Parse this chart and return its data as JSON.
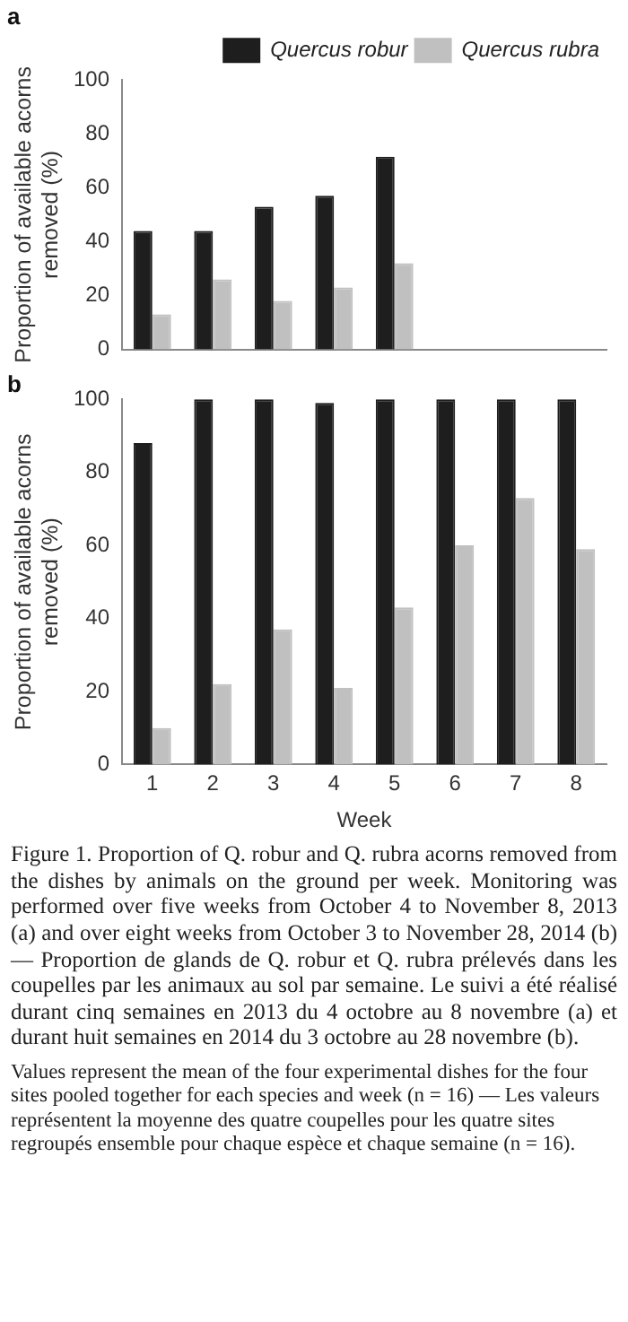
{
  "chart_data": [
    {
      "type": "bar",
      "title": "a",
      "ylabel": "Proportion of available acorns\nremoved (%)",
      "categories": [
        null,
        null,
        null,
        null,
        null,
        null,
        null,
        null
      ],
      "series": [
        {
          "name": "Quercus robur",
          "color": "#1e1e1e",
          "values": [
            44,
            44,
            53,
            57,
            71.5,
            null,
            null,
            null
          ]
        },
        {
          "name": "Quercus rubra",
          "color": "#c0c0c0",
          "values": [
            13,
            26,
            18,
            23,
            32,
            null,
            null,
            null
          ]
        }
      ],
      "ylim": [
        0,
        100
      ],
      "yticks": [
        0,
        20,
        40,
        60,
        80,
        100
      ],
      "grid": false,
      "legend": "top right",
      "tick_labels": "y"
    },
    {
      "type": "bar",
      "title": "b",
      "xlabel": "Week",
      "ylabel": "Proportion of available acorns\nremoved (%)",
      "categories": [
        "1",
        "2",
        "3",
        "4",
        "5",
        "6",
        "7",
        "8"
      ],
      "series": [
        {
          "color": "#1e1e1e",
          "values": [
            88,
            100,
            100,
            99,
            100,
            100,
            100,
            100
          ]
        },
        {
          "color": "#c0c0c0",
          "values": [
            10,
            22,
            37,
            21,
            43,
            60,
            73,
            59
          ]
        }
      ],
      "ylim": [
        0,
        100
      ],
      "yticks": [
        0,
        20,
        40,
        60,
        80,
        100
      ],
      "grid": false,
      "legend": false,
      "annotations": [
        "Figure 1. Proportion of Q. robur and Q. rubra acorns removed from the dishes by animals on the ground per week. Monitoring was performed over five weeks from October 4 to November 8, 2013 (a) and over eight weeks from October 3 to November 28, 2014 (b) — Proportion de glands de Q. robur et Q. rubra prélevés dans les coupelles par les animaux au sol par semaine. Le suivi a été réalisé durant cinq semaines en 2013 du 4 octobre au 8 novembre (a) et durant huit semaines en 2014 du 3 octobre au 28 novembre (b).",
        "Values represent the mean of the four experimental dishes for the four sites pooled together for each species and week (n = 16) — Les valeurs représentent la moyenne des quatre coupelles pour les quatre sites regroupés ensemble pour chaque espèce et chaque semaine (n = 16)."
      ]
    }
  ]
}
